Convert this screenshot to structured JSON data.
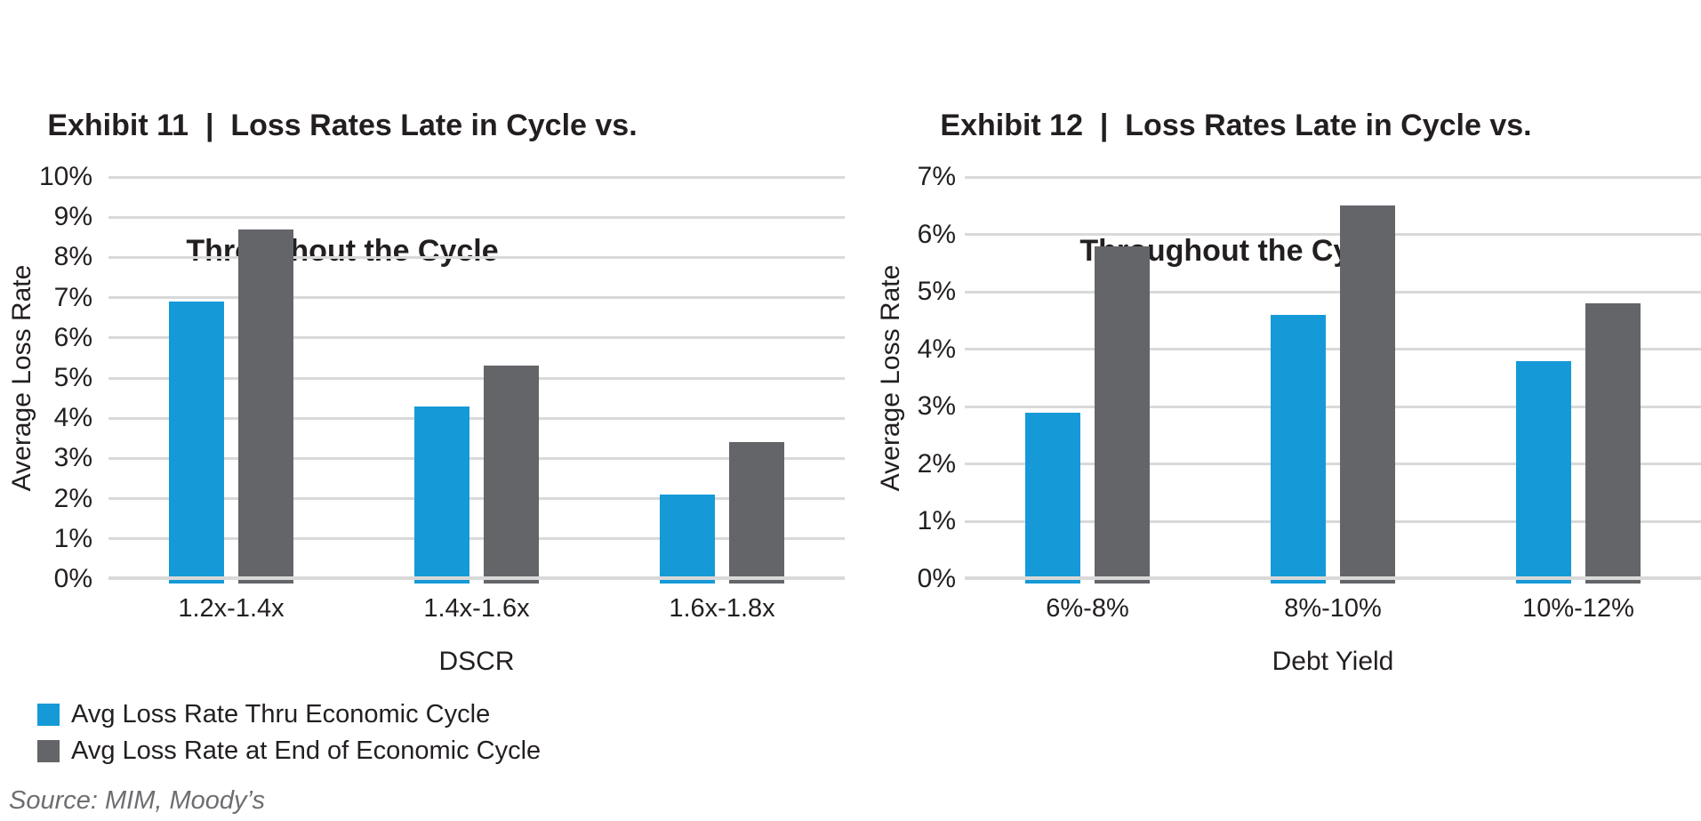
{
  "colors": {
    "series_blue": "#159AD7",
    "series_gray": "#636569",
    "gridline": "#D9D9D9",
    "axis_text": "#231F20",
    "title_text": "#231F20",
    "source_text": "#6D6E71"
  },
  "chart_data": [
    {
      "type": "bar",
      "title_line1": "Exhibit 11  |  Loss Rates Late in Cycle vs.",
      "title_line2": "Throughout the Cycle",
      "xlabel": "DSCR",
      "ylabel": "Average Loss Rate",
      "ylim": [
        0,
        10
      ],
      "ytick_step": 1,
      "ytick_labels": [
        "10%",
        "9%",
        "8%",
        "7%",
        "6%",
        "5%",
        "4%",
        "3%",
        "2%",
        "1%",
        "0%"
      ],
      "grid": true,
      "categories": [
        "1.2x-1.4x",
        "1.4x-1.6x",
        "1.6x-1.8x"
      ],
      "series": [
        {
          "name": "Avg Loss Rate Thru Economic Cycle",
          "color": "#159AD7",
          "values": [
            6.9,
            4.3,
            2.1
          ]
        },
        {
          "name": "Avg Loss Rate at End of Economic Cycle",
          "color": "#636569",
          "values": [
            8.7,
            5.3,
            3.4
          ]
        }
      ]
    },
    {
      "type": "bar",
      "title_line1": "Exhibit 12  |  Loss Rates Late in Cycle vs.",
      "title_line2": "Throughout the Cycle",
      "xlabel": "Debt Yield",
      "ylabel": "Average Loss Rate",
      "ylim": [
        0,
        7
      ],
      "ytick_step": 1,
      "ytick_labels": [
        "7%",
        "6%",
        "5%",
        "4%",
        "3%",
        "2%",
        "1%",
        "0%"
      ],
      "grid": true,
      "categories": [
        "6%-8%",
        "8%-10%",
        "10%-12%"
      ],
      "series": [
        {
          "name": "Avg Loss Rate Thru Economic Cycle",
          "color": "#159AD7",
          "values": [
            2.9,
            4.6,
            3.8
          ]
        },
        {
          "name": "Avg Loss Rate at End of Economic Cycle",
          "color": "#636569",
          "values": [
            5.8,
            6.5,
            4.8
          ]
        }
      ]
    }
  ],
  "legend": {
    "position": "bottom-left",
    "items": [
      {
        "label": "Avg Loss Rate Thru Economic Cycle",
        "color": "#159AD7"
      },
      {
        "label": "Avg Loss Rate at End of Economic Cycle",
        "color": "#636569"
      }
    ]
  },
  "source": "Source: MIM, Moody’s"
}
